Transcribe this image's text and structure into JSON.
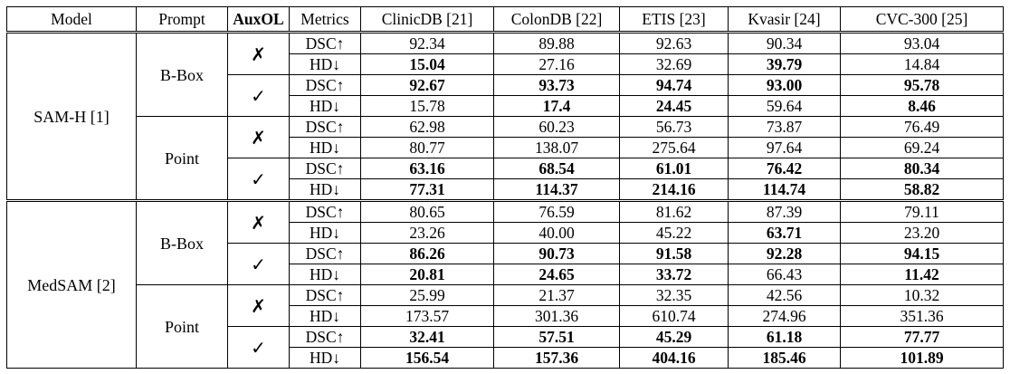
{
  "header": [
    "Model",
    "Prompt",
    "AuxOL",
    "Metrics",
    "ClinicDB [21]",
    "ColonDB [22]",
    "ETIS [23]",
    "Kvasir [24]",
    "CVC-300 [25]"
  ],
  "symbols": {
    "cross": "✗",
    "check": "✓"
  },
  "rows": [
    {
      "metric": "DSC↑",
      "values": [
        "92.34",
        "89.88",
        "92.63",
        "90.34",
        "93.04"
      ],
      "bold": [
        false,
        false,
        false,
        false,
        false
      ]
    },
    {
      "metric": "HD↓",
      "values": [
        "15.04",
        "27.16",
        "32.69",
        "39.79",
        "14.84"
      ],
      "bold": [
        true,
        false,
        false,
        true,
        false
      ]
    },
    {
      "metric": "DSC↑",
      "values": [
        "92.67",
        "93.73",
        "94.74",
        "93.00",
        "95.78"
      ],
      "bold": [
        true,
        true,
        true,
        true,
        true
      ]
    },
    {
      "metric": "HD↓",
      "values": [
        "15.78",
        "17.4",
        "24.45",
        "59.64",
        "8.46"
      ],
      "bold": [
        false,
        true,
        true,
        false,
        true
      ]
    },
    {
      "metric": "DSC↑",
      "values": [
        "62.98",
        "60.23",
        "56.73",
        "73.87",
        "76.49"
      ],
      "bold": [
        false,
        false,
        false,
        false,
        false
      ]
    },
    {
      "metric": "HD↓",
      "values": [
        "80.77",
        "138.07",
        "275.64",
        "97.64",
        "69.24"
      ],
      "bold": [
        false,
        false,
        false,
        false,
        false
      ]
    },
    {
      "metric": "DSC↑",
      "values": [
        "63.16",
        "68.54",
        "61.01",
        "76.42",
        "80.34"
      ],
      "bold": [
        true,
        true,
        true,
        true,
        true
      ]
    },
    {
      "metric": "HD↓",
      "values": [
        "77.31",
        "114.37",
        "214.16",
        "114.74",
        "58.82"
      ],
      "bold": [
        true,
        true,
        true,
        true,
        true
      ]
    },
    {
      "metric": "DSC↑",
      "values": [
        "80.65",
        "76.59",
        "81.62",
        "87.39",
        "79.11"
      ],
      "bold": [
        false,
        false,
        false,
        false,
        false
      ]
    },
    {
      "metric": "HD↓",
      "values": [
        "23.26",
        "40.00",
        "45.22",
        "63.71",
        "23.20"
      ],
      "bold": [
        false,
        false,
        false,
        true,
        false
      ]
    },
    {
      "metric": "DSC↑",
      "values": [
        "86.26",
        "90.73",
        "91.58",
        "92.28",
        "94.15"
      ],
      "bold": [
        true,
        true,
        true,
        true,
        true
      ]
    },
    {
      "metric": "HD↓",
      "values": [
        "20.81",
        "24.65",
        "33.72",
        "66.43",
        "11.42"
      ],
      "bold": [
        true,
        true,
        true,
        false,
        true
      ]
    },
    {
      "metric": "DSC↑",
      "values": [
        "25.99",
        "21.37",
        "32.35",
        "42.56",
        "10.32"
      ],
      "bold": [
        false,
        false,
        false,
        false,
        false
      ]
    },
    {
      "metric": "HD↓",
      "values": [
        "173.57",
        "301.36",
        "610.74",
        "274.96",
        "351.36"
      ],
      "bold": [
        false,
        false,
        false,
        false,
        false
      ]
    },
    {
      "metric": "DSC↑",
      "values": [
        "32.41",
        "57.51",
        "45.29",
        "61.18",
        "77.77"
      ],
      "bold": [
        true,
        true,
        true,
        true,
        true
      ]
    },
    {
      "metric": "HD↓",
      "values": [
        "156.54",
        "157.36",
        "404.16",
        "185.46",
        "101.89"
      ],
      "bold": [
        true,
        true,
        true,
        true,
        true
      ]
    }
  ],
  "groups": {
    "models": [
      "SAM-H [1]",
      "MedSAM [2]"
    ],
    "prompts": [
      "B-Box",
      "Point",
      "B-Box",
      "Point"
    ],
    "auxol": [
      "cross",
      "check",
      "cross",
      "check",
      "cross",
      "check",
      "cross",
      "check"
    ]
  }
}
